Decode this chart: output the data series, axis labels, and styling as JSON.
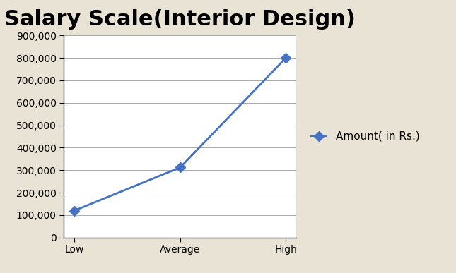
{
  "title": "Salary Scale(Interior Design)",
  "categories": [
    "Low",
    "Average",
    "High"
  ],
  "values": [
    120000,
    312000,
    800000
  ],
  "ylim": [
    0,
    900000
  ],
  "yticks": [
    0,
    100000,
    200000,
    300000,
    400000,
    500000,
    600000,
    700000,
    800000,
    900000
  ],
  "line_color": "#4472C4",
  "marker": "D",
  "marker_size": 7,
  "line_width": 2,
  "legend_label": "Amount( in Rs.)",
  "background_color": "#E8E3D5",
  "plot_background_color": "#FFFFFF",
  "title_fontsize": 22,
  "tick_fontsize": 10,
  "legend_fontsize": 11,
  "grid_color": "#AAAAAA",
  "spine_color": "#333333"
}
